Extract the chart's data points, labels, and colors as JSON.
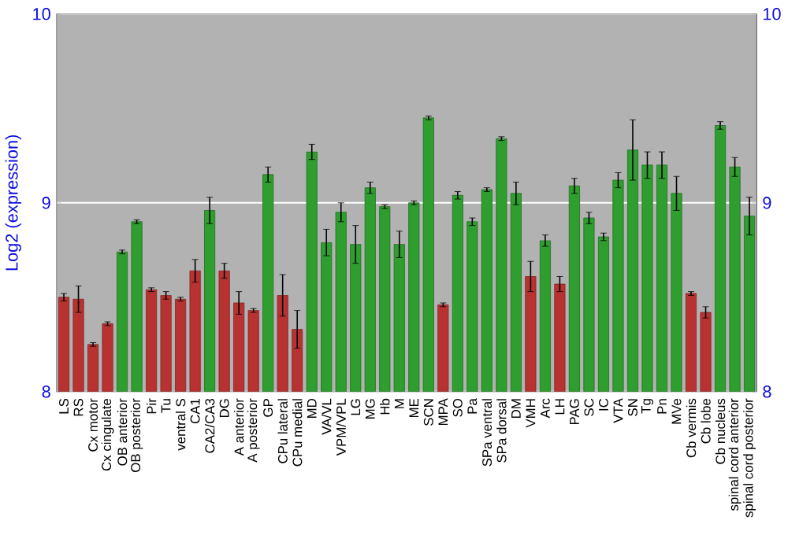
{
  "chart_data": {
    "type": "bar",
    "ylabel": "Log2 (expression)",
    "categories": [
      "LS",
      "RS",
      "Cx motor",
      "Cx cingulate",
      "OB anterior",
      "OB posterior",
      "Pir",
      "Tu",
      "ventral S",
      "CA1",
      "CA2/CA3",
      "DG",
      "A anterior",
      "A posterior",
      "GP",
      "CPu lateral",
      "CPu medial",
      "MD",
      "VA/VL",
      "VPM/VPL",
      "LG",
      "MG",
      "Hb",
      "M",
      "ME",
      "SCN",
      "MPA",
      "SO",
      "Pa",
      "SPa ventral",
      "SPa dorsal",
      "DM",
      "VMH",
      "Arc",
      "LH",
      "PAG",
      "SC",
      "IC",
      "VTA",
      "SN",
      "Tg",
      "Pn",
      "MVe",
      "Cb vermis",
      "Cb lobe",
      "Cb nucleus",
      "spinal cord anterior",
      "spinal cord posterior"
    ],
    "values": [
      8.5,
      8.49,
      8.25,
      8.36,
      8.74,
      8.9,
      8.54,
      8.51,
      8.49,
      8.64,
      8.96,
      8.64,
      8.47,
      8.43,
      9.15,
      8.51,
      8.33,
      9.27,
      8.79,
      8.95,
      8.78,
      9.08,
      8.98,
      8.78,
      9.0,
      9.45,
      8.46,
      9.04,
      8.9,
      9.07,
      9.34,
      9.05,
      8.61,
      8.8,
      8.57,
      9.09,
      8.92,
      8.82,
      9.12,
      9.28,
      9.2,
      9.2,
      9.05,
      8.52,
      8.42,
      9.41,
      9.19,
      8.93
    ],
    "errors": [
      0.02,
      0.07,
      0.01,
      0.01,
      0.01,
      0.01,
      0.01,
      0.02,
      0.01,
      0.06,
      0.07,
      0.04,
      0.06,
      0.01,
      0.04,
      0.11,
      0.1,
      0.04,
      0.07,
      0.05,
      0.1,
      0.03,
      0.01,
      0.07,
      0.01,
      0.01,
      0.01,
      0.02,
      0.02,
      0.01,
      0.01,
      0.06,
      0.08,
      0.03,
      0.04,
      0.04,
      0.03,
      0.02,
      0.04,
      0.16,
      0.07,
      0.07,
      0.09,
      0.01,
      0.03,
      0.02,
      0.05,
      0.1
    ],
    "colors": [
      "#b83232",
      "#b83232",
      "#b83232",
      "#b83232",
      "#2e9e2e",
      "#2e9e2e",
      "#b83232",
      "#b83232",
      "#b83232",
      "#b83232",
      "#2e9e2e",
      "#b83232",
      "#b83232",
      "#b83232",
      "#2e9e2e",
      "#b83232",
      "#b83232",
      "#2e9e2e",
      "#2e9e2e",
      "#2e9e2e",
      "#2e9e2e",
      "#2e9e2e",
      "#2e9e2e",
      "#2e9e2e",
      "#2e9e2e",
      "#2e9e2e",
      "#b83232",
      "#2e9e2e",
      "#2e9e2e",
      "#2e9e2e",
      "#2e9e2e",
      "#2e9e2e",
      "#b83232",
      "#2e9e2e",
      "#b83232",
      "#2e9e2e",
      "#2e9e2e",
      "#2e9e2e",
      "#2e9e2e",
      "#2e9e2e",
      "#2e9e2e",
      "#2e9e2e",
      "#2e9e2e",
      "#b83232",
      "#b83232",
      "#2e9e2e",
      "#2e9e2e",
      "#2e9e2e"
    ],
    "ylim": [
      8,
      10
    ],
    "yticks": [
      8,
      9,
      10
    ],
    "y2lim": [
      8,
      10
    ],
    "y2ticks": [
      8,
      9,
      10
    ],
    "grid": "y"
  }
}
